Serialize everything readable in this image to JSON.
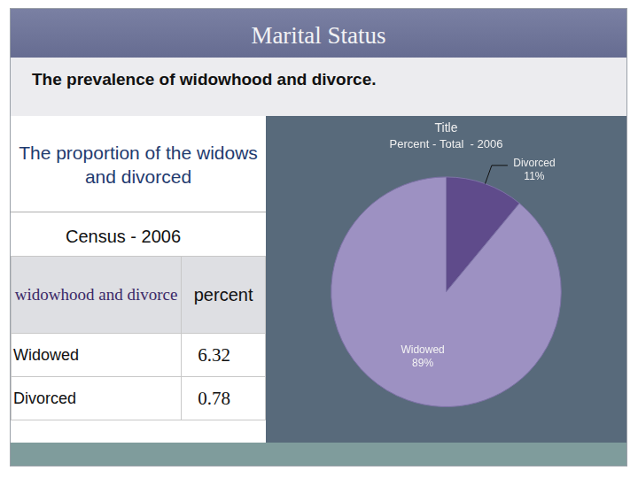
{
  "slide": {
    "title": "Marital Status",
    "subtitle": "The prevalence of widowhood and divorce."
  },
  "panel": {
    "heading": "The proportion of the widows and divorced",
    "caption": "Census - 2006"
  },
  "table": {
    "header": [
      "widowhood and divorce",
      "percent"
    ],
    "rows": [
      [
        "Widowed",
        6.32
      ],
      [
        "Divorced",
        0.78
      ]
    ]
  },
  "chart_data": {
    "type": "pie",
    "title": "Title",
    "subtitle": "Percent - Total  - 2006",
    "categories": [
      "Divorced",
      "Widowed"
    ],
    "values": [
      11,
      89
    ],
    "value_labels": [
      "11%",
      "89%"
    ],
    "colors": [
      "#5f4b8b",
      "#9d91c2"
    ],
    "data_labels": true
  }
}
